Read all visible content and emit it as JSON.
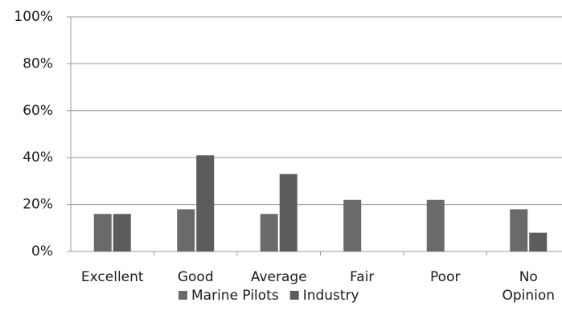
{
  "chart_data": {
    "type": "bar",
    "categories": [
      "Excellent",
      "Good",
      "Average",
      "Fair",
      "Poor",
      "No Opinion"
    ],
    "series": [
      {
        "name": "Marine Pilots",
        "color": "#6a6a6a",
        "values": [
          16,
          18,
          16,
          22,
          22,
          18
        ]
      },
      {
        "name": "Industry",
        "color": "#5c5c5c",
        "values": [
          16,
          41,
          33,
          0,
          0,
          8
        ]
      }
    ],
    "ylim": [
      0,
      100
    ],
    "yticks": [
      {
        "value": 0,
        "label": "0%"
      },
      {
        "value": 20,
        "label": "20%"
      },
      {
        "value": 40,
        "label": "40%"
      },
      {
        "value": 60,
        "label": "60%"
      },
      {
        "value": 80,
        "label": "80%"
      },
      {
        "value": 100,
        "label": "100%"
      }
    ],
    "grid": true
  }
}
